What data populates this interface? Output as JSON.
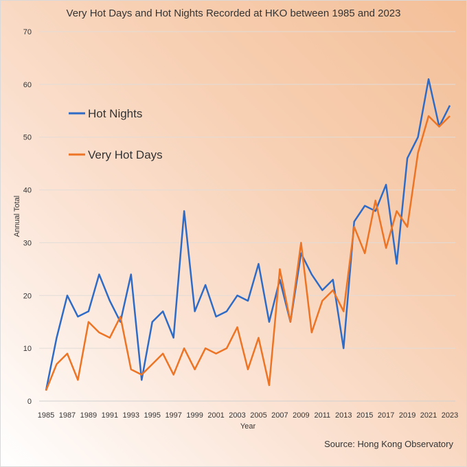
{
  "chart_data": {
    "type": "line",
    "title": "Very Hot Days and Hot Nights Recorded at HKO between 1985 and 2023",
    "xlabel": "Year",
    "ylabel": "Annual Total",
    "source": "Source: Hong Kong Observatory",
    "ylim": [
      0,
      70
    ],
    "yticks": [
      0,
      10,
      20,
      30,
      40,
      50,
      60,
      70
    ],
    "xticks": [
      "1985",
      "1987",
      "1989",
      "1991",
      "1993",
      "1995",
      "1997",
      "1999",
      "2001",
      "2003",
      "2005",
      "2007",
      "2009",
      "2011",
      "2013",
      "2015",
      "2017",
      "2019",
      "2021",
      "2023"
    ],
    "grid": true,
    "legend_placement": "top-left",
    "x": [
      1985,
      1986,
      1987,
      1988,
      1989,
      1990,
      1991,
      1992,
      1993,
      1994,
      1995,
      1996,
      1997,
      1998,
      1999,
      2000,
      2001,
      2002,
      2003,
      2004,
      2005,
      2006,
      2007,
      2008,
      2009,
      2010,
      2011,
      2012,
      2013,
      2014,
      2015,
      2016,
      2017,
      2018,
      2019,
      2020,
      2021,
      2022,
      2023
    ],
    "series": [
      {
        "name": "Hot Nights",
        "color": "#2e6bc6",
        "values": [
          2,
          12,
          20,
          16,
          17,
          24,
          19,
          15,
          24,
          4,
          15,
          17,
          12,
          36,
          17,
          22,
          16,
          17,
          20,
          19,
          26,
          15,
          23,
          15,
          28,
          24,
          21,
          23,
          10,
          34,
          37,
          36,
          41,
          26,
          46,
          50,
          61,
          52,
          56
        ]
      },
      {
        "name": "Very Hot Days",
        "color": "#ec7424",
        "values": [
          2,
          7,
          9,
          4,
          15,
          13,
          12,
          16,
          6,
          5,
          7,
          9,
          5,
          10,
          6,
          10,
          9,
          10,
          14,
          6,
          12,
          3,
          25,
          15,
          30,
          13,
          19,
          21,
          17,
          33,
          28,
          38,
          29,
          36,
          33,
          47,
          54,
          52,
          54
        ]
      }
    ]
  }
}
